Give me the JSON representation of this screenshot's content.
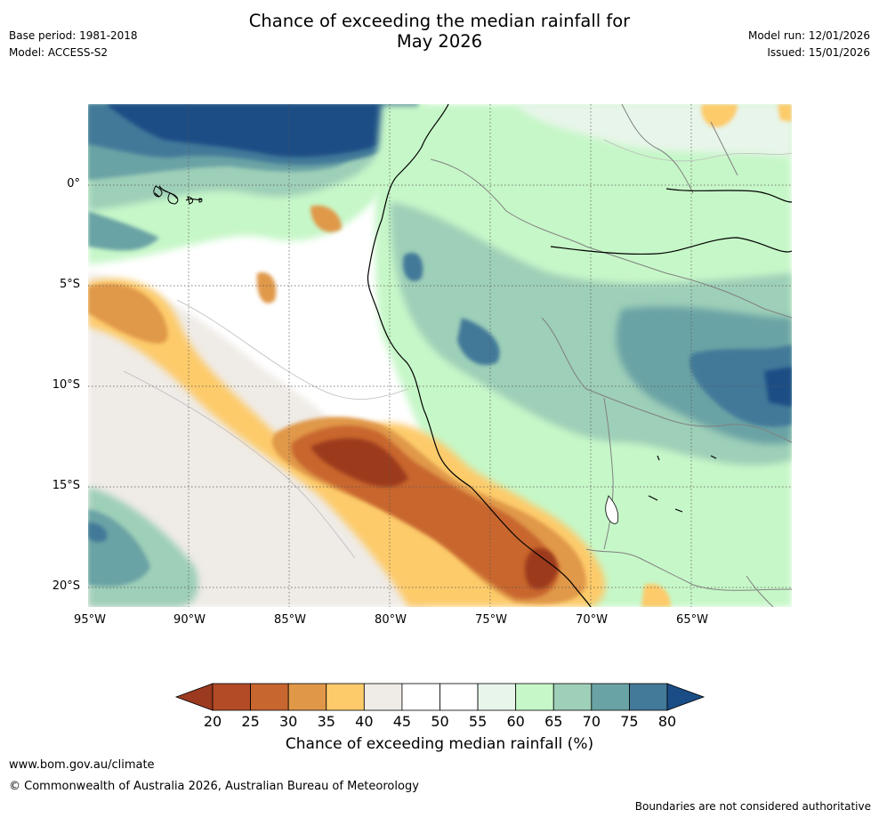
{
  "header": {
    "title_line1": "Chance of exceeding the median rainfall for",
    "title_line2": "May 2026",
    "base_period": "Base period: 1981-2018",
    "model": "Model: ACCESS-S2",
    "model_run": "Model run: 12/01/2026",
    "issued": "Issued: 15/01/2026"
  },
  "map": {
    "lat_labels": [
      "0°",
      "5°S",
      "10°S",
      "15°S",
      "20°S"
    ],
    "lon_labels": [
      "95°W",
      "90°W",
      "85°W",
      "80°W",
      "75°W",
      "70°W",
      "65°W"
    ]
  },
  "legend": {
    "label": "Chance of exceeding median rainfall (%)",
    "ticks": [
      "20",
      "25",
      "30",
      "35",
      "40",
      "45",
      "50",
      "55",
      "60",
      "65",
      "70",
      "75",
      "80"
    ],
    "colors": [
      "#9c3a1f",
      "#b34b27",
      "#c8662f",
      "#e09848",
      "#fdcb6a",
      "#efebe6",
      "#ffffff",
      "#ffffff",
      "#e8f5ea",
      "#c6f7c8",
      "#9ecfb8",
      "#6aa3a5",
      "#437999",
      "#1a4d85"
    ]
  },
  "footer": {
    "url": "www.bom.gov.au/climate",
    "copyright": "© Commonwealth of Australia 2026, Australian Bureau of Meteorology",
    "disclaimer": "Boundaries are not considered authoritative"
  }
}
